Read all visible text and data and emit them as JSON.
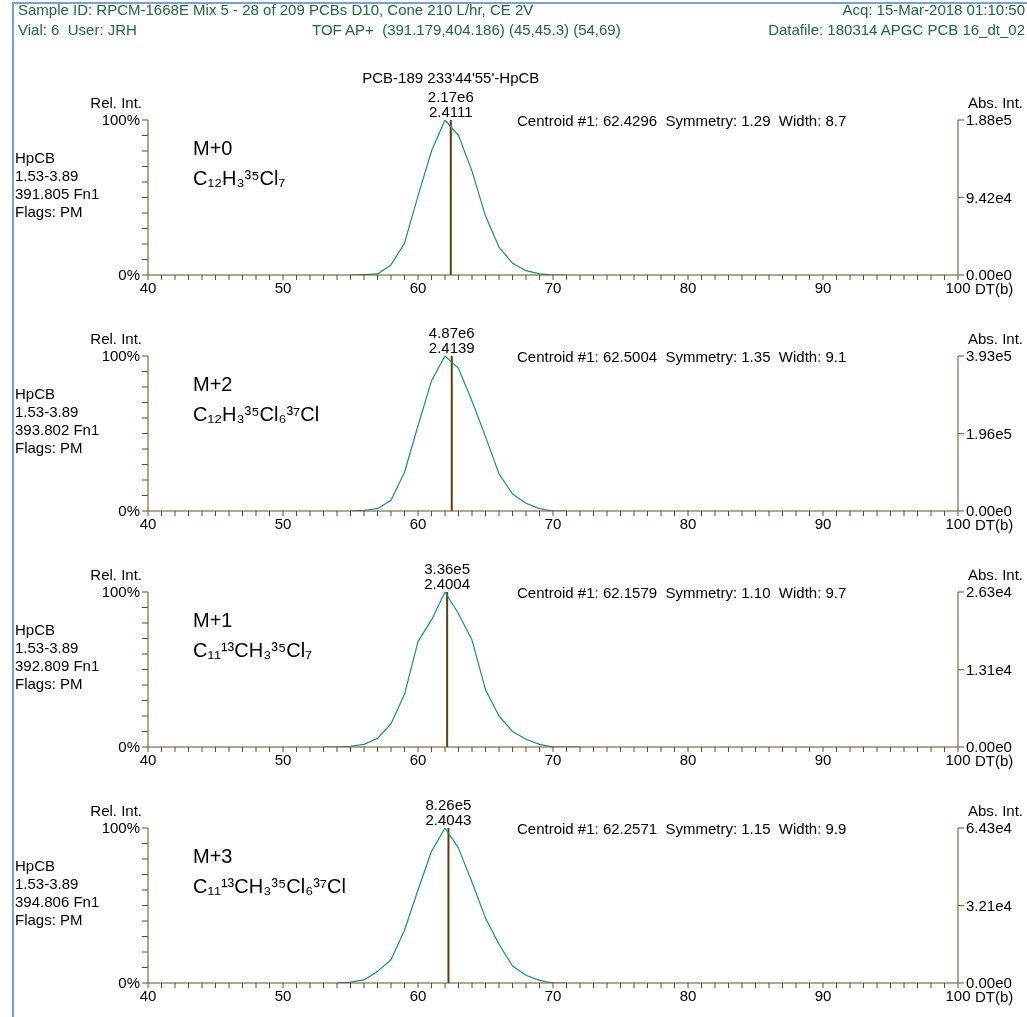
{
  "chart_data": [
    {
      "type": "line",
      "title": "PCB-189 233'44'55'-HpCB",
      "ylabel": "Rel. Int.",
      "y2label": "Abs. Int.",
      "xlabel": "DT(b)",
      "annotations": [
        "HpCB",
        "1.53-3.89",
        "391.805 Fn1",
        "Flags: PM",
        "M+0",
        "C₁₂H₃³⁵Cl₇",
        "Centroid #1: 62.4296  Symmetry: 1.29  Width: 8.7",
        "Sample ID: RPCM-1668E Mix 5 - 28 of 209 PCBs D10, Cone 210 L/hr, CE 2V",
        "Acq: 15-Mar-2018 01:10:50",
        "Vial: 6  User: JRH",
        "TOF AP+  (391.179,404.186) (45,45.3) (54,69)",
        "Datafile: 180314 APGC PCB 16_dt_02",
        {
          "text": "2.17e6",
          "x": 62.4296,
          "y": 100
        },
        {
          "text": "2.4111",
          "x": 62.4296,
          "y": 100
        }
      ],
      "series": [
        {
          "color": "#1f8a8a",
          "x": [
            55,
            56,
            57,
            58,
            59,
            60,
            61,
            62,
            63,
            64,
            65,
            66,
            67,
            68,
            69,
            70,
            71
          ],
          "values": [
            0,
            0.3,
            0.7,
            6.5,
            20.6,
            51,
            80,
            100,
            90,
            67,
            38,
            18,
            7.6,
            2.8,
            0.7,
            0,
            0
          ]
        }
      ],
      "ref_lines": [
        {
          "axis": "x",
          "value": 62.4296,
          "color": "#5a4010"
        }
      ],
      "xlim": [
        40,
        100
      ],
      "xticks": [
        40,
        {
          "value": 41,
          "label": null
        },
        {
          "value": 42,
          "label": null
        },
        {
          "value": 43,
          "label": null
        },
        {
          "value": 44,
          "label": null
        },
        {
          "value": 45,
          "label": null
        },
        {
          "value": 46,
          "label": null
        },
        {
          "value": 47,
          "label": null
        },
        {
          "value": 48,
          "label": null
        },
        {
          "value": 49,
          "label": null
        },
        50,
        {
          "value": 51,
          "label": null
        },
        {
          "value": 52,
          "label": null
        },
        {
          "value": 53,
          "label": null
        },
        {
          "value": 54,
          "label": null
        },
        {
          "value": 55,
          "label": null
        },
        {
          "value": 56,
          "label": null
        },
        {
          "value": 57,
          "label": null
        },
        {
          "value": 58,
          "label": null
        },
        {
          "value": 59,
          "label": null
        },
        60,
        {
          "value": 61,
          "label": null
        },
        {
          "value": 62,
          "label": null
        },
        {
          "value": 63,
          "label": null
        },
        {
          "value": 64,
          "label": null
        },
        {
          "value": 65,
          "label": null
        },
        {
          "value": 66,
          "label": null
        },
        {
          "value": 67,
          "label": null
        },
        {
          "value": 68,
          "label": null
        },
        {
          "value": 69,
          "label": null
        },
        70,
        {
          "value": 71,
          "label": null
        },
        {
          "value": 72,
          "label": null
        },
        {
          "value": 73,
          "label": null
        },
        {
          "value": 74,
          "label": null
        },
        {
          "value": 75,
          "label": null
        },
        {
          "value": 76,
          "label": null
        },
        {
          "value": 77,
          "label": null
        },
        {
          "value": 78,
          "label": null
        },
        {
          "value": 79,
          "label": null
        },
        80,
        {
          "value": 81,
          "label": null
        },
        {
          "value": 82,
          "label": null
        },
        {
          "value": 83,
          "label": null
        },
        {
          "value": 84,
          "label": null
        },
        {
          "value": 85,
          "label": null
        },
        {
          "value": 86,
          "label": null
        },
        {
          "value": 87,
          "label": null
        },
        {
          "value": 88,
          "label": null
        },
        {
          "value": 89,
          "label": null
        },
        90,
        {
          "value": 91,
          "label": null
        },
        {
          "value": 92,
          "label": null
        },
        {
          "value": 93,
          "label": null
        },
        {
          "value": 94,
          "label": null
        },
        {
          "value": 95,
          "label": null
        },
        {
          "value": 96,
          "label": null
        },
        {
          "value": 97,
          "label": null
        },
        {
          "value": 98,
          "label": null
        },
        {
          "value": 99,
          "label": null
        },
        100
      ],
      "ylim": [
        0,
        100
      ],
      "yticks": [
        {
          "value": 0,
          "label": "0%"
        },
        {
          "value": 10,
          "label": null
        },
        {
          "value": 20,
          "label": null
        },
        {
          "value": 30,
          "label": null
        },
        {
          "value": 40,
          "label": null
        },
        {
          "value": 50,
          "label": null
        },
        {
          "value": 60,
          "label": null
        },
        {
          "value": 70,
          "label": null
        },
        {
          "value": 80,
          "label": null
        },
        {
          "value": 90,
          "label": null
        },
        {
          "value": 100,
          "label": "100%"
        }
      ],
      "y2lim": [
        0,
        188000
      ],
      "y2ticks": [
        {
          "value": 0,
          "label": "0.00e0"
        },
        {
          "value": 94200,
          "label": "9.42e4"
        },
        {
          "value": 188000,
          "label": "1.88e5"
        }
      ]
    },
    {
      "type": "line",
      "ylabel": "Rel. Int.",
      "y2label": "Abs. Int.",
      "xlabel": "DT(b)",
      "annotations": [
        "HpCB",
        "1.53-3.89",
        "393.802 Fn1",
        "Flags: PM",
        "M+2",
        "C₁₂H₃³⁵Cl₆³⁷Cl",
        "Centroid #1: 62.5004  Symmetry: 1.35  Width: 9.1",
        {
          "text": "4.87e6",
          "x": 62.5004,
          "y": 100
        },
        {
          "text": "2.4139",
          "x": 62.5004,
          "y": 100
        }
      ],
      "series": [
        {
          "color": "#1f8a8a",
          "x": [
            55,
            56,
            57,
            58,
            59,
            60,
            61,
            62,
            63,
            64,
            65,
            66,
            67,
            68,
            69,
            70,
            71
          ],
          "values": [
            0,
            0.5,
            1.5,
            7,
            25,
            55,
            84,
            100,
            92,
            71,
            48,
            24,
            11,
            5,
            1.5,
            0,
            0
          ]
        }
      ],
      "ref_lines": [
        {
          "axis": "x",
          "value": 62.5004,
          "color": "#5a4010"
        }
      ],
      "xlim": [
        40,
        100
      ],
      "xticks": [
        40,
        {
          "value": 41,
          "label": null
        },
        {
          "value": 42,
          "label": null
        },
        {
          "value": 43,
          "label": null
        },
        {
          "value": 44,
          "label": null
        },
        {
          "value": 45,
          "label": null
        },
        {
          "value": 46,
          "label": null
        },
        {
          "value": 47,
          "label": null
        },
        {
          "value": 48,
          "label": null
        },
        {
          "value": 49,
          "label": null
        },
        50,
        {
          "value": 51,
          "label": null
        },
        {
          "value": 52,
          "label": null
        },
        {
          "value": 53,
          "label": null
        },
        {
          "value": 54,
          "label": null
        },
        {
          "value": 55,
          "label": null
        },
        {
          "value": 56,
          "label": null
        },
        {
          "value": 57,
          "label": null
        },
        {
          "value": 58,
          "label": null
        },
        {
          "value": 59,
          "label": null
        },
        60,
        {
          "value": 61,
          "label": null
        },
        {
          "value": 62,
          "label": null
        },
        {
          "value": 63,
          "label": null
        },
        {
          "value": 64,
          "label": null
        },
        {
          "value": 65,
          "label": null
        },
        {
          "value": 66,
          "label": null
        },
        {
          "value": 67,
          "label": null
        },
        {
          "value": 68,
          "label": null
        },
        {
          "value": 69,
          "label": null
        },
        70,
        {
          "value": 71,
          "label": null
        },
        {
          "value": 72,
          "label": null
        },
        {
          "value": 73,
          "label": null
        },
        {
          "value": 74,
          "label": null
        },
        {
          "value": 75,
          "label": null
        },
        {
          "value": 76,
          "label": null
        },
        {
          "value": 77,
          "label": null
        },
        {
          "value": 78,
          "label": null
        },
        {
          "value": 79,
          "label": null
        },
        80,
        {
          "value": 81,
          "label": null
        },
        {
          "value": 82,
          "label": null
        },
        {
          "value": 83,
          "label": null
        },
        {
          "value": 84,
          "label": null
        },
        {
          "value": 85,
          "label": null
        },
        {
          "value": 86,
          "label": null
        },
        {
          "value": 87,
          "label": null
        },
        {
          "value": 88,
          "label": null
        },
        {
          "value": 89,
          "label": null
        },
        90,
        {
          "value": 91,
          "label": null
        },
        {
          "value": 92,
          "label": null
        },
        {
          "value": 93,
          "label": null
        },
        {
          "value": 94,
          "label": null
        },
        {
          "value": 95,
          "label": null
        },
        {
          "value": 96,
          "label": null
        },
        {
          "value": 97,
          "label": null
        },
        {
          "value": 98,
          "label": null
        },
        {
          "value": 99,
          "label": null
        },
        100
      ],
      "ylim": [
        0,
        100
      ],
      "yticks": [
        {
          "value": 0,
          "label": "0%"
        },
        {
          "value": 10,
          "label": null
        },
        {
          "value": 20,
          "label": null
        },
        {
          "value": 30,
          "label": null
        },
        {
          "value": 40,
          "label": null
        },
        {
          "value": 50,
          "label": null
        },
        {
          "value": 60,
          "label": null
        },
        {
          "value": 70,
          "label": null
        },
        {
          "value": 80,
          "label": null
        },
        {
          "value": 90,
          "label": null
        },
        {
          "value": 100,
          "label": "100%"
        }
      ],
      "y2lim": [
        0,
        393000
      ],
      "y2ticks": [
        {
          "value": 0,
          "label": "0.00e0"
        },
        {
          "value": 196000,
          "label": "1.96e5"
        },
        {
          "value": 393000,
          "label": "3.93e5"
        }
      ]
    },
    {
      "type": "line",
      "ylabel": "Rel. Int.",
      "y2label": "Abs. Int.",
      "xlabel": "DT(b)",
      "annotations": [
        "HpCB",
        "1.53-3.89",
        "392.809 Fn1",
        "Flags: PM",
        "M+1",
        "C₁₁¹³CH₃³⁵Cl₇",
        "Centroid #1: 62.1579  Symmetry: 1.10  Width: 9.7",
        {
          "text": "3.36e5",
          "x": 62.1579,
          "y": 100
        },
        {
          "text": "2.4004",
          "x": 62.1579,
          "y": 100
        }
      ],
      "series": [
        {
          "color": "#1f8a8a",
          "x": [
            53,
            54,
            55,
            56,
            57,
            58,
            59,
            60,
            61,
            62,
            63,
            64,
            65,
            66,
            67,
            68,
            69,
            70,
            71,
            72
          ],
          "values": [
            0,
            0,
            0.5,
            1.7,
            5.6,
            15,
            34,
            68,
            82,
            100,
            86,
            69,
            37,
            20,
            10,
            5,
            1.7,
            0,
            0,
            0
          ]
        }
      ],
      "ref_lines": [
        {
          "axis": "x",
          "value": 62.1579,
          "color": "#5a4010"
        }
      ],
      "xlim": [
        40,
        100
      ],
      "xticks": [
        40,
        {
          "value": 41,
          "label": null
        },
        {
          "value": 42,
          "label": null
        },
        {
          "value": 43,
          "label": null
        },
        {
          "value": 44,
          "label": null
        },
        {
          "value": 45,
          "label": null
        },
        {
          "value": 46,
          "label": null
        },
        {
          "value": 47,
          "label": null
        },
        {
          "value": 48,
          "label": null
        },
        {
          "value": 49,
          "label": null
        },
        50,
        {
          "value": 51,
          "label": null
        },
        {
          "value": 52,
          "label": null
        },
        {
          "value": 53,
          "label": null
        },
        {
          "value": 54,
          "label": null
        },
        {
          "value": 55,
          "label": null
        },
        {
          "value": 56,
          "label": null
        },
        {
          "value": 57,
          "label": null
        },
        {
          "value": 58,
          "label": null
        },
        {
          "value": 59,
          "label": null
        },
        60,
        {
          "value": 61,
          "label": null
        },
        {
          "value": 62,
          "label": null
        },
        {
          "value": 63,
          "label": null
        },
        {
          "value": 64,
          "label": null
        },
        {
          "value": 65,
          "label": null
        },
        {
          "value": 66,
          "label": null
        },
        {
          "value": 67,
          "label": null
        },
        {
          "value": 68,
          "label": null
        },
        {
          "value": 69,
          "label": null
        },
        70,
        {
          "value": 71,
          "label": null
        },
        {
          "value": 72,
          "label": null
        },
        {
          "value": 73,
          "label": null
        },
        {
          "value": 74,
          "label": null
        },
        {
          "value": 75,
          "label": null
        },
        {
          "value": 76,
          "label": null
        },
        {
          "value": 77,
          "label": null
        },
        {
          "value": 78,
          "label": null
        },
        {
          "value": 79,
          "label": null
        },
        80,
        {
          "value": 81,
          "label": null
        },
        {
          "value": 82,
          "label": null
        },
        {
          "value": 83,
          "label": null
        },
        {
          "value": 84,
          "label": null
        },
        {
          "value": 85,
          "label": null
        },
        {
          "value": 86,
          "label": null
        },
        {
          "value": 87,
          "label": null
        },
        {
          "value": 88,
          "label": null
        },
        {
          "value": 89,
          "label": null
        },
        90,
        {
          "value": 91,
          "label": null
        },
        {
          "value": 92,
          "label": null
        },
        {
          "value": 93,
          "label": null
        },
        {
          "value": 94,
          "label": null
        },
        {
          "value": 95,
          "label": null
        },
        {
          "value": 96,
          "label": null
        },
        {
          "value": 97,
          "label": null
        },
        {
          "value": 98,
          "label": null
        },
        {
          "value": 99,
          "label": null
        },
        100
      ],
      "ylim": [
        0,
        100
      ],
      "yticks": [
        {
          "value": 0,
          "label": "0%"
        },
        {
          "value": 10,
          "label": null
        },
        {
          "value": 20,
          "label": null
        },
        {
          "value": 30,
          "label": null
        },
        {
          "value": 40,
          "label": null
        },
        {
          "value": 50,
          "label": null
        },
        {
          "value": 60,
          "label": null
        },
        {
          "value": 70,
          "label": null
        },
        {
          "value": 80,
          "label": null
        },
        {
          "value": 90,
          "label": null
        },
        {
          "value": 100,
          "label": "100%"
        }
      ],
      "y2lim": [
        0,
        26300
      ],
      "y2ticks": [
        {
          "value": 0,
          "label": "0.00e0"
        },
        {
          "value": 13100,
          "label": "1.31e4"
        },
        {
          "value": 26300,
          "label": "2.63e4"
        }
      ]
    },
    {
      "type": "line",
      "ylabel": "Rel. Int.",
      "y2label": "Abs. Int.",
      "xlabel": "DT(b)",
      "annotations": [
        "HpCB",
        "1.53-3.89",
        "394.806 Fn1",
        "Flags: PM",
        "M+3",
        "C₁₁¹³CH₃³⁵Cl₆³⁷Cl",
        "Centroid #1: 62.2571  Symmetry: 1.15  Width: 9.9",
        {
          "text": "8.26e5",
          "x": 62.2571,
          "y": 100
        },
        {
          "text": "2.4043",
          "x": 62.2571,
          "y": 100
        }
      ],
      "series": [
        {
          "color": "#1f8a8a",
          "x": [
            54,
            55,
            56,
            57,
            58,
            59,
            60,
            61,
            62,
            63,
            64,
            65,
            66,
            67,
            68,
            69,
            70,
            71
          ],
          "values": [
            0,
            0.6,
            2,
            7.5,
            15,
            34,
            60,
            85,
            100,
            87,
            65,
            42,
            25,
            11,
            5,
            1.7,
            0,
            0
          ]
        }
      ],
      "ref_lines": [
        {
          "axis": "x",
          "value": 62.2571,
          "color": "#5a4010"
        }
      ],
      "xlim": [
        40,
        100
      ],
      "xticks": [
        40,
        {
          "value": 41,
          "label": null
        },
        {
          "value": 42,
          "label": null
        },
        {
          "value": 43,
          "label": null
        },
        {
          "value": 44,
          "label": null
        },
        {
          "value": 45,
          "label": null
        },
        {
          "value": 46,
          "label": null
        },
        {
          "value": 47,
          "label": null
        },
        {
          "value": 48,
          "label": null
        },
        {
          "value": 49,
          "label": null
        },
        50,
        {
          "value": 51,
          "label": null
        },
        {
          "value": 52,
          "label": null
        },
        {
          "value": 53,
          "label": null
        },
        {
          "value": 54,
          "label": null
        },
        {
          "value": 55,
          "label": null
        },
        {
          "value": 56,
          "label": null
        },
        {
          "value": 57,
          "label": null
        },
        {
          "value": 58,
          "label": null
        },
        {
          "value": 59,
          "label": null
        },
        60,
        {
          "value": 61,
          "label": null
        },
        {
          "value": 62,
          "label": null
        },
        {
          "value": 63,
          "label": null
        },
        {
          "value": 64,
          "label": null
        },
        {
          "value": 65,
          "label": null
        },
        {
          "value": 66,
          "label": null
        },
        {
          "value": 67,
          "label": null
        },
        {
          "value": 68,
          "label": null
        },
        {
          "value": 69,
          "label": null
        },
        70,
        {
          "value": 71,
          "label": null
        },
        {
          "value": 72,
          "label": null
        },
        {
          "value": 73,
          "label": null
        },
        {
          "value": 74,
          "label": null
        },
        {
          "value": 75,
          "label": null
        },
        {
          "value": 76,
          "label": null
        },
        {
          "value": 77,
          "label": null
        },
        {
          "value": 78,
          "label": null
        },
        {
          "value": 79,
          "label": null
        },
        80,
        {
          "value": 81,
          "label": null
        },
        {
          "value": 82,
          "label": null
        },
        {
          "value": 83,
          "label": null
        },
        {
          "value": 84,
          "label": null
        },
        {
          "value": 85,
          "label": null
        },
        {
          "value": 86,
          "label": null
        },
        {
          "value": 87,
          "label": null
        },
        {
          "value": 88,
          "label": null
        },
        {
          "value": 89,
          "label": null
        },
        90,
        {
          "value": 91,
          "label": null
        },
        {
          "value": 92,
          "label": null
        },
        {
          "value": 93,
          "label": null
        },
        {
          "value": 94,
          "label": null
        },
        {
          "value": 95,
          "label": null
        },
        {
          "value": 96,
          "label": null
        },
        {
          "value": 97,
          "label": null
        },
        {
          "value": 98,
          "label": null
        },
        {
          "value": 99,
          "label": null
        },
        100
      ],
      "ylim": [
        0,
        100
      ],
      "yticks": [
        {
          "value": 0,
          "label": "0%"
        },
        {
          "value": 10,
          "label": null
        },
        {
          "value": 20,
          "label": null
        },
        {
          "value": 30,
          "label": null
        },
        {
          "value": 40,
          "label": null
        },
        {
          "value": 50,
          "label": null
        },
        {
          "value": 60,
          "label": null
        },
        {
          "value": 70,
          "label": null
        },
        {
          "value": 80,
          "label": null
        },
        {
          "value": 90,
          "label": null
        },
        {
          "value": 100,
          "label": "100%"
        }
      ],
      "y2lim": [
        0,
        64300
      ],
      "y2ticks": [
        {
          "value": 0,
          "label": "0.00e0"
        },
        {
          "value": 32100,
          "label": "3.21e4"
        },
        {
          "value": 64300,
          "label": "6.43e4"
        }
      ]
    }
  ]
}
